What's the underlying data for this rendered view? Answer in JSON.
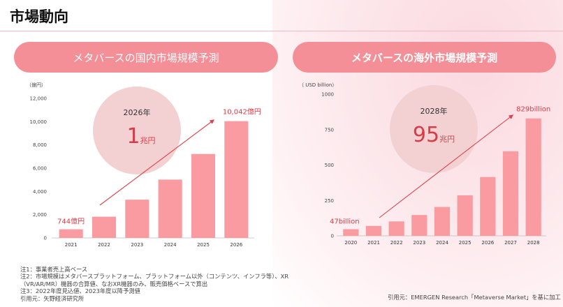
{
  "header": {
    "title": "市場動向"
  },
  "panels": {
    "left_title": "メタバースの国内市場規模予測",
    "right_title": "メタバースの海外市場規模予測"
  },
  "chart_data": [
    {
      "type": "bar",
      "unit_label": "（億円）",
      "categories": [
        "2021",
        "2022",
        "2023",
        "2024",
        "2025",
        "2026"
      ],
      "values": [
        744,
        1825,
        3288,
        5016,
        7218,
        10042
      ],
      "ylim": [
        0,
        12000
      ],
      "yticks": [
        "0",
        "2,000",
        "4,000",
        "6,000",
        "8,000",
        "10,000",
        "12,000"
      ],
      "ytick_values": [
        0,
        2000,
        4000,
        6000,
        8000,
        10000,
        12000
      ],
      "annotations": {
        "first": "744億円",
        "last": "10,042億円"
      },
      "highlight": {
        "year": "2026年",
        "value": "1",
        "unit": "兆円"
      },
      "grid": false,
      "bar_color": "#f99ba1"
    },
    {
      "type": "bar",
      "unit_label": "（ USD  billion）",
      "categories": [
        "2020",
        "2021",
        "2022",
        "2023",
        "2024",
        "2025",
        "2026",
        "2027",
        "2028"
      ],
      "values": [
        47,
        70,
        102,
        147,
        204,
        286,
        415,
        597,
        829
      ],
      "ylim": [
        0,
        1000
      ],
      "yticks": [
        "0",
        "250",
        "500",
        "750",
        "1000"
      ],
      "ytick_values": [
        0,
        250,
        500,
        750,
        1000
      ],
      "annotations": {
        "first": "47billion",
        "last": "829billion"
      },
      "highlight": {
        "year": "2028年",
        "value": "95",
        "unit": "兆円"
      },
      "grid": false,
      "bar_color": "#f99ba1"
    }
  ],
  "notes": [
    "注1：事業者売上高ベース",
    "注2：市場規模はメタバースプラットフォーム、プラットフォーム以外（コンテンツ、インフラ等）、XR",
    "（VR/AR/MR）機器の合算値、なおXR機器のみ、販売価格ベースで算出",
    "注3：2022年度見込値、2023年度以降予測値",
    "引用元：矢野経済研究所"
  ],
  "source_right": "引用元：EMERGEN Research「Metaverse Market」を基に加工",
  "colors": {
    "accent": "#f58f97",
    "bar": "#f99ba1",
    "circle": "#f3d1d3",
    "arrow": "#e0404a",
    "label": "#d93b47"
  }
}
